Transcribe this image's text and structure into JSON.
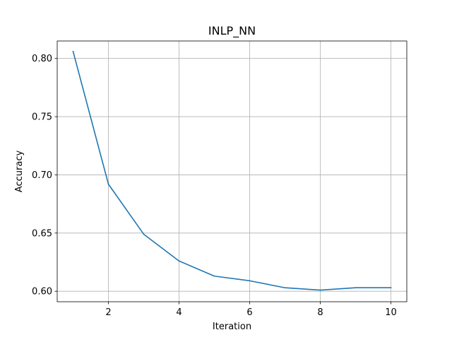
{
  "chart_data": {
    "type": "line",
    "title": "INLP_NN",
    "xlabel": "Iteration",
    "ylabel": "Accuracy",
    "x": [
      1,
      2,
      3,
      4,
      5,
      6,
      7,
      8,
      9,
      10
    ],
    "series": [
      {
        "values": [
          0.806,
          0.692,
          0.649,
          0.626,
          0.613,
          0.609,
          0.603,
          0.601,
          0.603,
          0.603
        ],
        "color": "#1f77b4"
      }
    ],
    "xlim": [
      0.55,
      10.45
    ],
    "ylim": [
      0.591,
      0.815
    ],
    "xticks": [
      2,
      4,
      6,
      8,
      10
    ],
    "xtick_labels": [
      "2",
      "4",
      "6",
      "8",
      "10"
    ],
    "yticks": [
      0.6,
      0.65,
      0.7,
      0.75,
      0.8
    ],
    "ytick_labels": [
      "0.60",
      "0.65",
      "0.70",
      "0.75",
      "0.80"
    ],
    "grid": true,
    "legend": null
  }
}
